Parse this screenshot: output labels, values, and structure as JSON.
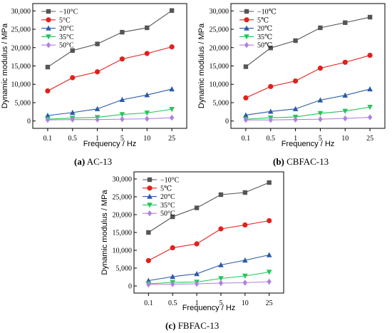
{
  "captions": [
    {
      "letter": "(a)",
      "text": " AC-13"
    },
    {
      "letter": "(b)",
      "text": " CBFAC-13"
    },
    {
      "letter": "(c)",
      "text": " FBFAC-13"
    }
  ],
  "chart_data": [
    {
      "type": "line",
      "title": "",
      "xlabel": "Frequency / Hz",
      "ylabel": "Dynamic modulus / MPa",
      "categories": [
        "0.1",
        "0.5",
        "1",
        "5",
        "10",
        "25"
      ],
      "ylim": [
        -2000,
        32000
      ],
      "yticks": [
        "0",
        "5,000",
        "10,000",
        "15,000",
        "20,000",
        "25,000",
        "30,000"
      ],
      "legend_position": "top-left",
      "grid": false,
      "series": [
        {
          "name": "−10°C",
          "color": "#555555",
          "marker": "square",
          "values": [
            14700,
            19200,
            21000,
            24200,
            25400,
            30100
          ]
        },
        {
          "name": "5°C",
          "color": "#e3201b",
          "marker": "circle",
          "values": [
            8200,
            11800,
            13400,
            16900,
            18400,
            20200
          ]
        },
        {
          "name": "20°C",
          "color": "#2a5aa8",
          "marker": "triangle-up",
          "values": [
            1500,
            2300,
            3300,
            5800,
            7100,
            8700
          ]
        },
        {
          "name": "35°C",
          "color": "#22c75a",
          "marker": "triangle-down",
          "values": [
            500,
            800,
            1000,
            1800,
            2200,
            3200
          ]
        },
        {
          "name": "50°C",
          "color": "#b07fe0",
          "marker": "diamond",
          "values": [
            300,
            400,
            400,
            500,
            600,
            900
          ]
        }
      ]
    },
    {
      "type": "line",
      "title": "",
      "xlabel": "Frequency / Hz",
      "ylabel": "Dynamic modulus / MPa",
      "categories": [
        "0.1",
        "0.5",
        "1",
        "5",
        "10",
        "25"
      ],
      "ylim": [
        -2000,
        32000
      ],
      "yticks": [
        "0",
        "5,000",
        "10,000",
        "15,000",
        "20,000",
        "25,000",
        "30,000"
      ],
      "legend_position": "top-left",
      "grid": false,
      "series": [
        {
          "name": "−10℃",
          "color": "#555555",
          "marker": "square",
          "values": [
            14800,
            19900,
            21900,
            25400,
            26800,
            28300
          ]
        },
        {
          "name": "5℃",
          "color": "#e3201b",
          "marker": "circle",
          "values": [
            6300,
            9400,
            10900,
            14400,
            16000,
            17900
          ]
        },
        {
          "name": "20℃",
          "color": "#2a5aa8",
          "marker": "triangle-up",
          "values": [
            1600,
            2600,
            3300,
            5700,
            7000,
            8700
          ]
        },
        {
          "name": "35℃",
          "color": "#22c75a",
          "marker": "triangle-down",
          "values": [
            500,
            900,
            1100,
            2100,
            2700,
            3800
          ]
        },
        {
          "name": "50℃",
          "color": "#b07fe0",
          "marker": "diamond",
          "values": [
            300,
            300,
            400,
            500,
            700,
            1000
          ]
        }
      ]
    },
    {
      "type": "line",
      "title": "",
      "xlabel": "Frequency / Hz",
      "ylabel": "Dynamic modulus / MPa",
      "categories": [
        "0.1",
        "0.5",
        "1",
        "5",
        "10",
        "25"
      ],
      "ylim": [
        -2000,
        32000
      ],
      "yticks": [
        "0",
        "5,000",
        "10,000",
        "15,000",
        "20,000",
        "25,000",
        "30,000"
      ],
      "legend_position": "top-left",
      "grid": false,
      "series": [
        {
          "name": "−10°C",
          "color": "#555555",
          "marker": "square",
          "values": [
            15000,
            19400,
            21900,
            25600,
            26200,
            29000
          ]
        },
        {
          "name": "5℃",
          "color": "#e3201b",
          "marker": "circle",
          "values": [
            7100,
            10700,
            11800,
            16000,
            17100,
            18300
          ]
        },
        {
          "name": "20°C",
          "color": "#2a5aa8",
          "marker": "triangle-up",
          "values": [
            1500,
            2600,
            3400,
            5900,
            7200,
            8700
          ]
        },
        {
          "name": "35°C",
          "color": "#22c75a",
          "marker": "triangle-down",
          "values": [
            600,
            1000,
            1100,
            2100,
            2800,
            3900
          ]
        },
        {
          "name": "50°C",
          "color": "#b07fe0",
          "marker": "diamond",
          "values": [
            400,
            500,
            600,
            800,
            900,
            1200
          ]
        }
      ]
    }
  ]
}
